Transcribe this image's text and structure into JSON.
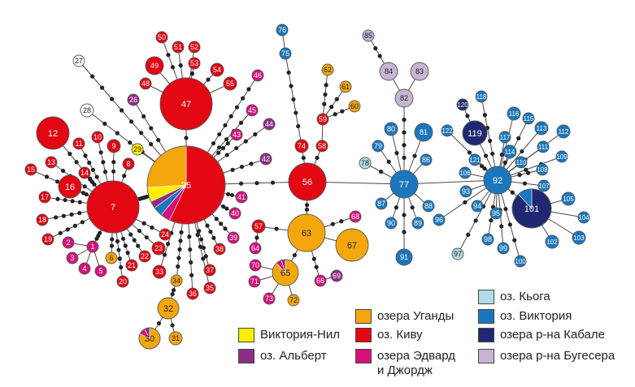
{
  "colors": {
    "victoria_nile": "#ffee00",
    "albert": "#8e2d84",
    "uganda": "#f4a70d",
    "kivu": "#e30613",
    "edward_george": "#d6127a",
    "kyoga": "#b0dcea",
    "victoria": "#1b77bd",
    "kabale": "#1f2870",
    "bugesera": "#c6b4d3",
    "white": "#ffffff"
  },
  "legend": [
    {
      "label": "Виктория-Нил",
      "color": "victoria_nile"
    },
    {
      "label": "оз. Альберт",
      "color": "albert"
    },
    {
      "label": "озера Уганды",
      "color": "uganda"
    },
    {
      "label": "оз. Киву",
      "color": "kivu"
    },
    {
      "label": "озера Эдвард\nи Джордж",
      "color": "edward_george"
    },
    {
      "label": "оз. Кьога",
      "color": "kyoga"
    },
    {
      "label": "оз. Виктория",
      "color": "victoria"
    },
    {
      "label": "озера р-на Кабале",
      "color": "kabale"
    },
    {
      "label": "озера р-на Бугесера",
      "color": "bugesera"
    }
  ],
  "nodes": [
    {
      "id": "25",
      "color": "kivu",
      "pie": [
        [
          "kivu",
          0.57
        ],
        [
          "edward_george",
          0.04
        ],
        [
          "victoria",
          0.04
        ],
        [
          "albert",
          0.03
        ],
        [
          "victoria_nile",
          0.06
        ],
        [
          "uganda",
          0.26
        ]
      ]
    },
    {
      "id": "7",
      "color": "kivu"
    },
    {
      "id": "47",
      "color": "kivu"
    },
    {
      "id": "56",
      "color": "kivu"
    },
    {
      "id": "63",
      "color": "uganda"
    },
    {
      "id": "67",
      "color": "uganda"
    },
    {
      "id": "65",
      "color": "uganda",
      "pie": [
        [
          "uganda",
          0.88
        ],
        [
          "edward_george",
          0.07
        ],
        [
          "albert",
          0.05
        ]
      ]
    },
    {
      "id": "77",
      "color": "victoria"
    },
    {
      "id": "92",
      "color": "victoria"
    },
    {
      "id": "101",
      "color": "kabale",
      "pie": [
        [
          "kabale",
          0.88
        ],
        [
          "victoria",
          0.12
        ]
      ]
    },
    {
      "id": "119",
      "color": "kabale"
    },
    {
      "id": "82",
      "color": "bugesera"
    },
    {
      "id": "83",
      "color": "bugesera"
    },
    {
      "id": "84",
      "color": "bugesera"
    },
    {
      "id": "85",
      "color": "bugesera"
    },
    {
      "id": "12",
      "color": "kivu"
    },
    {
      "id": "16",
      "color": "kivu"
    },
    {
      "id": "32",
      "color": "uganda"
    },
    {
      "id": "30",
      "color": "uganda",
      "pie": [
        [
          "uganda",
          0.82
        ],
        [
          "edward_george",
          0.1
        ],
        [
          "albert",
          0.08
        ]
      ]
    },
    {
      "id": "31",
      "color": "uganda"
    },
    {
      "id": "34",
      "color": "uganda"
    },
    {
      "id": "27",
      "color": "white"
    },
    {
      "id": "28",
      "color": "white"
    },
    {
      "id": "29",
      "color": "victoria_nile"
    },
    {
      "id": "26",
      "color": "albert"
    },
    {
      "id": "1",
      "color": "edward_george"
    },
    {
      "id": "2",
      "color": "edward_george"
    },
    {
      "id": "3",
      "color": "edward_george"
    },
    {
      "id": "4",
      "color": "edward_george"
    },
    {
      "id": "5",
      "color": "edward_george"
    },
    {
      "id": "6",
      "color": "uganda"
    },
    {
      "id": "8",
      "color": "kivu"
    },
    {
      "id": "9",
      "color": "kivu"
    },
    {
      "id": "10",
      "color": "kivu"
    },
    {
      "id": "11",
      "color": "kivu"
    },
    {
      "id": "13",
      "color": "kivu"
    },
    {
      "id": "14",
      "color": "kivu"
    },
    {
      "id": "15",
      "color": "kivu"
    },
    {
      "id": "17",
      "color": "kivu"
    },
    {
      "id": "18",
      "color": "kivu"
    },
    {
      "id": "19",
      "color": "kivu"
    },
    {
      "id": "20",
      "color": "kivu"
    },
    {
      "id": "21",
      "color": "kivu"
    },
    {
      "id": "22",
      "color": "kivu"
    },
    {
      "id": "23",
      "color": "kivu"
    },
    {
      "id": "24",
      "color": "kivu"
    },
    {
      "id": "33",
      "color": "kivu"
    },
    {
      "id": "35",
      "color": "kivu"
    },
    {
      "id": "36",
      "color": "kivu"
    },
    {
      "id": "37",
      "color": "kivu"
    },
    {
      "id": "38",
      "color": "kivu"
    },
    {
      "id": "39",
      "color": "edward_george"
    },
    {
      "id": "40",
      "color": "edward_george"
    },
    {
      "id": "41",
      "color": "edward_george"
    },
    {
      "id": "42",
      "color": "albert"
    },
    {
      "id": "43",
      "color": "edward_george"
    },
    {
      "id": "44",
      "color": "albert"
    },
    {
      "id": "45",
      "color": "edward_george"
    },
    {
      "id": "46",
      "color": "edward_george"
    },
    {
      "id": "48",
      "color": "kivu"
    },
    {
      "id": "49",
      "color": "kivu"
    },
    {
      "id": "50",
      "color": "kivu"
    },
    {
      "id": "51",
      "color": "kivu"
    },
    {
      "id": "52",
      "color": "kivu"
    },
    {
      "id": "53",
      "color": "kivu"
    },
    {
      "id": "54",
      "color": "kivu"
    },
    {
      "id": "55",
      "color": "kivu"
    },
    {
      "id": "57",
      "color": "kivu"
    },
    {
      "id": "58",
      "color": "kivu"
    },
    {
      "id": "59",
      "color": "kivu"
    },
    {
      "id": "60",
      "color": "uganda"
    },
    {
      "id": "61",
      "color": "uganda"
    },
    {
      "id": "62",
      "color": "uganda"
    },
    {
      "id": "64",
      "color": "edward_george"
    },
    {
      "id": "66",
      "color": "edward_george"
    },
    {
      "id": "68",
      "color": "edward_george"
    },
    {
      "id": "69",
      "color": "albert"
    },
    {
      "id": "70",
      "color": "edward_george"
    },
    {
      "id": "71",
      "color": "edward_george"
    },
    {
      "id": "72",
      "color": "uganda"
    },
    {
      "id": "73",
      "color": "edward_george"
    },
    {
      "id": "74",
      "color": "kivu"
    },
    {
      "id": "75",
      "color": "victoria"
    },
    {
      "id": "76",
      "color": "victoria"
    },
    {
      "id": "78",
      "color": "kyoga"
    },
    {
      "id": "79",
      "color": "victoria"
    },
    {
      "id": "80",
      "color": "victoria"
    },
    {
      "id": "81",
      "color": "victoria"
    },
    {
      "id": "86",
      "color": "victoria"
    },
    {
      "id": "87",
      "color": "victoria"
    },
    {
      "id": "88",
      "color": "victoria"
    },
    {
      "id": "89",
      "color": "victoria"
    },
    {
      "id": "90",
      "color": "victoria"
    },
    {
      "id": "91",
      "color": "victoria"
    },
    {
      "id": "93",
      "color": "victoria"
    },
    {
      "id": "94",
      "color": "victoria"
    },
    {
      "id": "95",
      "color": "victoria"
    },
    {
      "id": "96",
      "color": "victoria"
    },
    {
      "id": "97",
      "color": "kyoga"
    },
    {
      "id": "98",
      "color": "victoria"
    },
    {
      "id": "99",
      "color": "victoria"
    },
    {
      "id": "100",
      "color": "victoria"
    },
    {
      "id": "102",
      "color": "victoria"
    },
    {
      "id": "103",
      "color": "victoria"
    },
    {
      "id": "104",
      "color": "victoria"
    },
    {
      "id": "105",
      "color": "victoria"
    },
    {
      "id": "106",
      "color": "victoria"
    },
    {
      "id": "107",
      "color": "victoria"
    },
    {
      "id": "108",
      "color": "victoria"
    },
    {
      "id": "109",
      "color": "victoria"
    },
    {
      "id": "110",
      "color": "victoria"
    },
    {
      "id": "111",
      "color": "victoria"
    },
    {
      "id": "112",
      "color": "victoria"
    },
    {
      "id": "113",
      "color": "victoria"
    },
    {
      "id": "114",
      "color": "victoria"
    },
    {
      "id": "115",
      "color": "victoria"
    },
    {
      "id": "116",
      "color": "victoria"
    },
    {
      "id": "117",
      "color": "victoria"
    },
    {
      "id": "118",
      "color": "victoria"
    },
    {
      "id": "120",
      "color": "kabale"
    },
    {
      "id": "121",
      "color": "victoria"
    },
    {
      "id": "122",
      "color": "victoria"
    }
  ],
  "edges": [
    [
      "7",
      "25",
      5
    ],
    [
      "25",
      "56",
      3
    ],
    [
      "56",
      "77",
      0
    ],
    [
      "77",
      "92",
      0
    ],
    [
      "7",
      "12",
      4
    ],
    [
      "7",
      "16",
      2
    ],
    [
      "7",
      "13",
      4
    ],
    [
      "7",
      "14",
      3
    ],
    [
      "7",
      "15",
      4
    ],
    [
      "7",
      "17",
      4
    ],
    [
      "7",
      "18",
      4
    ],
    [
      "7",
      "19",
      4
    ],
    [
      "7",
      "10",
      3
    ],
    [
      "7",
      "11",
      4
    ],
    [
      "7",
      "9",
      2
    ],
    [
      "7",
      "8",
      1
    ],
    [
      "7",
      "1",
      3
    ],
    [
      "7",
      "6",
      2
    ],
    [
      "7",
      "20",
      4
    ],
    [
      "7",
      "21",
      3
    ],
    [
      "7",
      "22",
      3
    ],
    [
      "7",
      "23",
      2
    ],
    [
      "7",
      "24",
      2
    ],
    [
      "1",
      "2",
      0
    ],
    [
      "1",
      "3",
      0
    ],
    [
      "1",
      "4",
      0
    ],
    [
      "1",
      "5",
      0
    ],
    [
      "25",
      "27",
      7
    ],
    [
      "25",
      "28",
      4
    ],
    [
      "25",
      "29",
      0
    ],
    [
      "25",
      "26",
      3
    ],
    [
      "25",
      "47",
      1
    ],
    [
      "47",
      "48",
      0
    ],
    [
      "47",
      "49",
      0
    ],
    [
      "47",
      "50",
      2
    ],
    [
      "47",
      "51",
      1
    ],
    [
      "47",
      "52",
      1
    ],
    [
      "47",
      "53",
      1
    ],
    [
      "47",
      "54",
      1
    ],
    [
      "47",
      "55",
      0
    ],
    [
      "25",
      "46",
      7
    ],
    [
      "25",
      "45",
      4
    ],
    [
      "25",
      "43",
      3
    ],
    [
      "25",
      "44",
      4
    ],
    [
      "25",
      "42",
      3
    ],
    [
      "25",
      "41",
      2
    ],
    [
      "25",
      "40",
      2
    ],
    [
      "25",
      "39",
      3
    ],
    [
      "25",
      "38",
      3
    ],
    [
      "25",
      "37",
      4
    ],
    [
      "25",
      "36",
      4
    ],
    [
      "25",
      "35",
      4
    ],
    [
      "25",
      "33",
      3
    ],
    [
      "25",
      "34",
      5
    ],
    [
      "34",
      "32",
      2
    ],
    [
      "32",
      "30",
      1
    ],
    [
      "32",
      "31",
      1
    ],
    [
      "56",
      "74",
      1
    ],
    [
      "74",
      "75",
      5
    ],
    [
      "75",
      "76",
      0
    ],
    [
      "56",
      "58",
      1
    ],
    [
      "58",
      "59",
      0
    ],
    [
      "59",
      "62",
      3
    ],
    [
      "59",
      "61",
      2
    ],
    [
      "59",
      "60",
      2
    ],
    [
      "56",
      "63",
      2
    ],
    [
      "63",
      "67",
      0
    ],
    [
      "63",
      "57",
      1
    ],
    [
      "57",
      "64",
      1
    ],
    [
      "63",
      "68",
      2
    ],
    [
      "63",
      "65",
      1
    ],
    [
      "63",
      "66",
      2
    ],
    [
      "66",
      "69",
      0
    ],
    [
      "65",
      "70",
      0
    ],
    [
      "65",
      "71",
      0
    ],
    [
      "65",
      "72",
      0
    ],
    [
      "65",
      "73",
      0
    ],
    [
      "77",
      "82",
      4
    ],
    [
      "82",
      "84",
      0
    ],
    [
      "82",
      "83",
      0
    ],
    [
      "84",
      "85",
      2
    ],
    [
      "77",
      "78",
      1
    ],
    [
      "77",
      "79",
      1
    ],
    [
      "77",
      "80",
      1
    ],
    [
      "77",
      "81",
      1
    ],
    [
      "77",
      "86",
      0
    ],
    [
      "77",
      "87",
      0
    ],
    [
      "77",
      "88",
      0
    ],
    [
      "77",
      "89",
      1
    ],
    [
      "77",
      "90",
      1
    ],
    [
      "77",
      "91",
      2
    ],
    [
      "92",
      "119",
      1
    ],
    [
      "119",
      "120",
      1
    ],
    [
      "92",
      "118",
      4
    ],
    [
      "92",
      "121",
      2
    ],
    [
      "92",
      "122",
      1
    ],
    [
      "92",
      "116",
      2
    ],
    [
      "92",
      "115",
      2
    ],
    [
      "92",
      "117",
      1
    ],
    [
      "92",
      "114",
      1
    ],
    [
      "92",
      "113",
      1
    ],
    [
      "92",
      "112",
      2
    ],
    [
      "92",
      "111",
      1
    ],
    [
      "92",
      "110",
      0
    ],
    [
      "92",
      "109",
      2
    ],
    [
      "92",
      "108",
      2
    ],
    [
      "92",
      "107",
      1
    ],
    [
      "92",
      "106",
      0
    ],
    [
      "92",
      "93",
      0
    ],
    [
      "92",
      "94",
      0
    ],
    [
      "92",
      "95",
      0
    ],
    [
      "92",
      "96",
      1
    ],
    [
      "92",
      "97",
      3
    ],
    [
      "92",
      "98",
      2
    ],
    [
      "92",
      "99",
      2
    ],
    [
      "92",
      "100",
      3
    ],
    [
      "92",
      "101",
      1
    ],
    [
      "101",
      "102",
      0
    ],
    [
      "101",
      "103",
      0
    ],
    [
      "101",
      "104",
      0
    ],
    [
      "101",
      "105",
      0
    ]
  ]
}
